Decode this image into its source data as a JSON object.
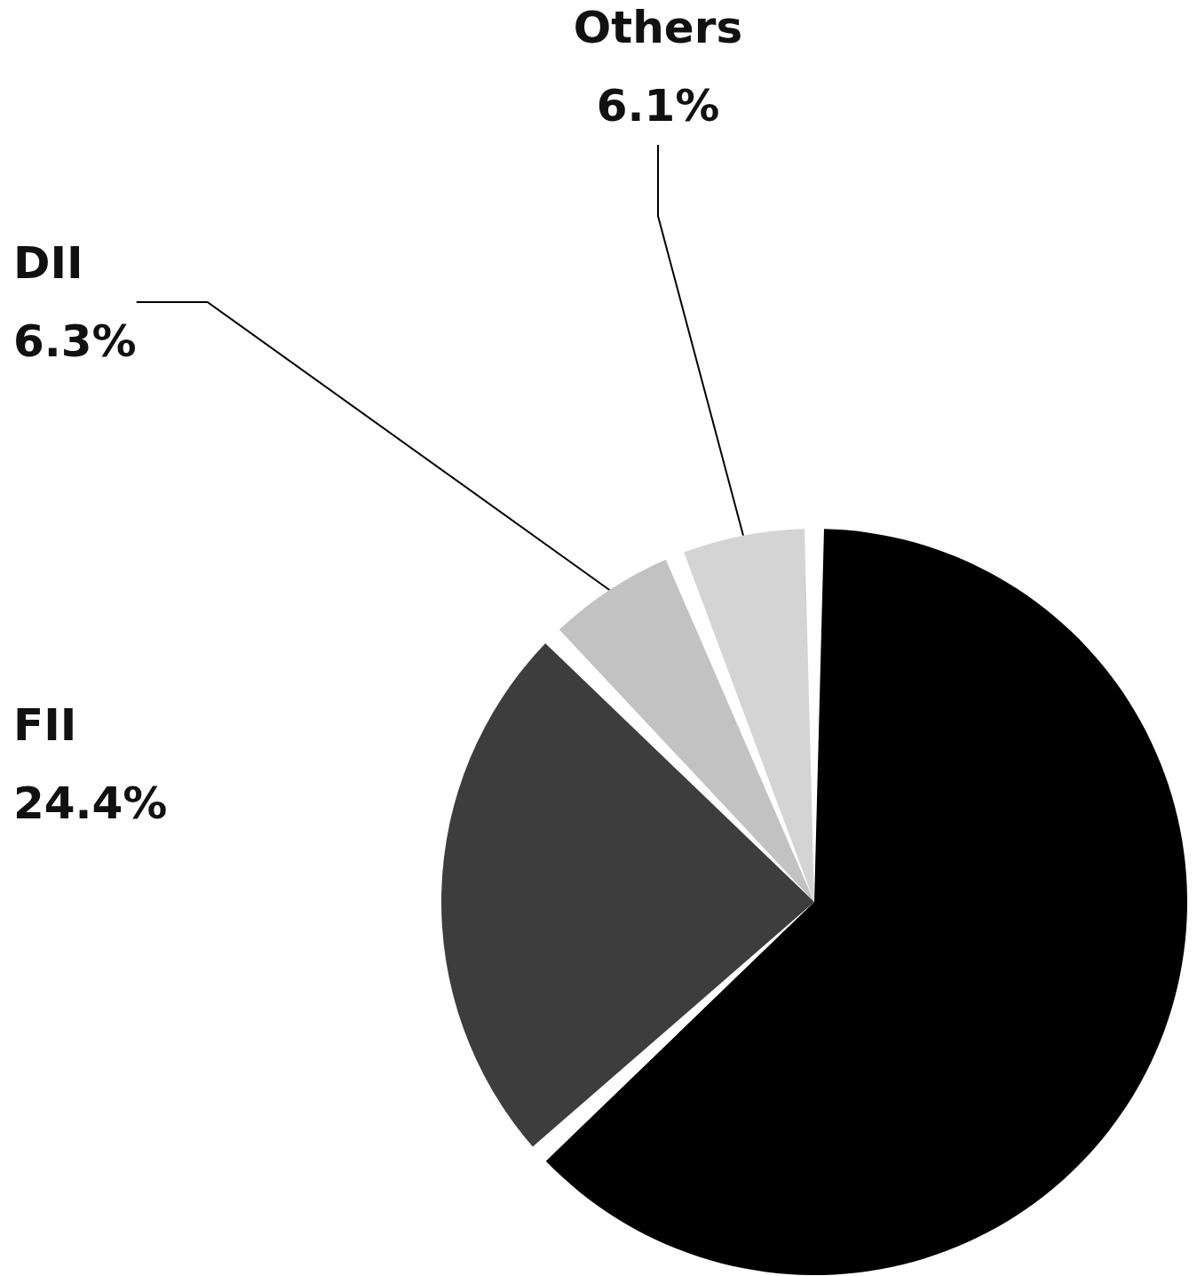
{
  "chart_data": {
    "type": "pie",
    "categories": [
      null,
      "FII",
      "DII",
      "Others"
    ],
    "values": [
      63.2,
      24.4,
      6.3,
      6.1
    ],
    "value_labels": [
      null,
      "24.4%",
      "6.3%",
      "6.1%"
    ],
    "colors": [
      "#000000",
      "#3d3d3d",
      "#c2c2c2",
      "#d4d4d4"
    ],
    "legend": false
  }
}
